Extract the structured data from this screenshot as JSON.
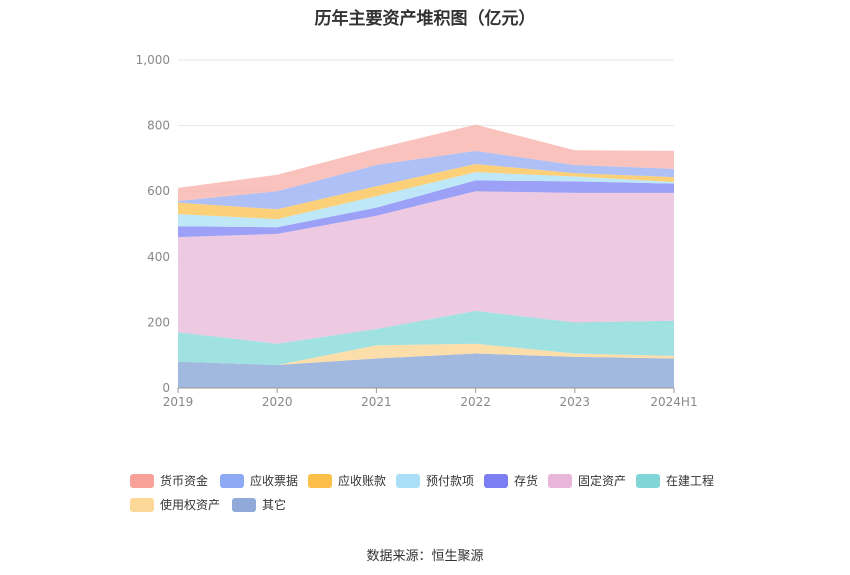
{
  "title": "历年主要资产堆积图（亿元）",
  "source": "数据来源：恒生聚源",
  "chart_data": {
    "type": "area",
    "stacked": true,
    "title": "历年主要资产堆积图（亿元）",
    "xlabel": "",
    "ylabel": "",
    "categories": [
      "2019",
      "2020",
      "2021",
      "2022",
      "2023",
      "2024H1"
    ],
    "ylim": [
      0,
      1000
    ],
    "yticks": [
      0,
      200,
      400,
      600,
      800,
      1000
    ],
    "ytick_labels": [
      "0",
      "200",
      "400",
      "600",
      "800",
      "1,000"
    ],
    "grid": true,
    "legend_position": "bottom",
    "series": [
      {
        "name": "其它",
        "color": "#91acd9",
        "values": [
          80,
          70,
          90,
          105,
          95,
          90
        ]
      },
      {
        "name": "使用权资产",
        "color": "#fcd89b",
        "values": [
          0,
          0,
          40,
          30,
          10,
          8
        ]
      },
      {
        "name": "在建工程",
        "color": "#8fdcdc",
        "values": [
          90,
          65,
          50,
          100,
          95,
          107
        ]
      },
      {
        "name": "固定资产",
        "color": "#eac1dd",
        "values": [
          290,
          335,
          345,
          365,
          395,
          390
        ]
      },
      {
        "name": "存货",
        "color": "#8b8ff5",
        "values": [
          33,
          20,
          25,
          33,
          35,
          28
        ]
      },
      {
        "name": "预付款项",
        "color": "#b3e3f7",
        "values": [
          37,
          25,
          35,
          25,
          15,
          5
        ]
      },
      {
        "name": "应收账款",
        "color": "#fcc862",
        "values": [
          35,
          30,
          30,
          25,
          10,
          15
        ]
      },
      {
        "name": "应收票据",
        "color": "#a0b5f5",
        "values": [
          5,
          55,
          65,
          40,
          25,
          25
        ]
      },
      {
        "name": "货币资金",
        "color": "#f8b7b0",
        "values": [
          40,
          50,
          50,
          80,
          45,
          55
        ]
      }
    ]
  },
  "legend": [
    {
      "label": "货币资金",
      "color": "#f8a198"
    },
    {
      "label": "应收票据",
      "color": "#8faaf5"
    },
    {
      "label": "应收账款",
      "color": "#fcc04a"
    },
    {
      "label": "预付款项",
      "color": "#a9e0f7"
    },
    {
      "label": "存货",
      "color": "#7b7ff2"
    },
    {
      "label": "固定资产",
      "color": "#e8b6d8"
    },
    {
      "label": "在建工程",
      "color": "#80d6d6"
    },
    {
      "label": "使用权资产",
      "color": "#fcd898"
    },
    {
      "label": "其它",
      "color": "#8fa9d8"
    }
  ]
}
